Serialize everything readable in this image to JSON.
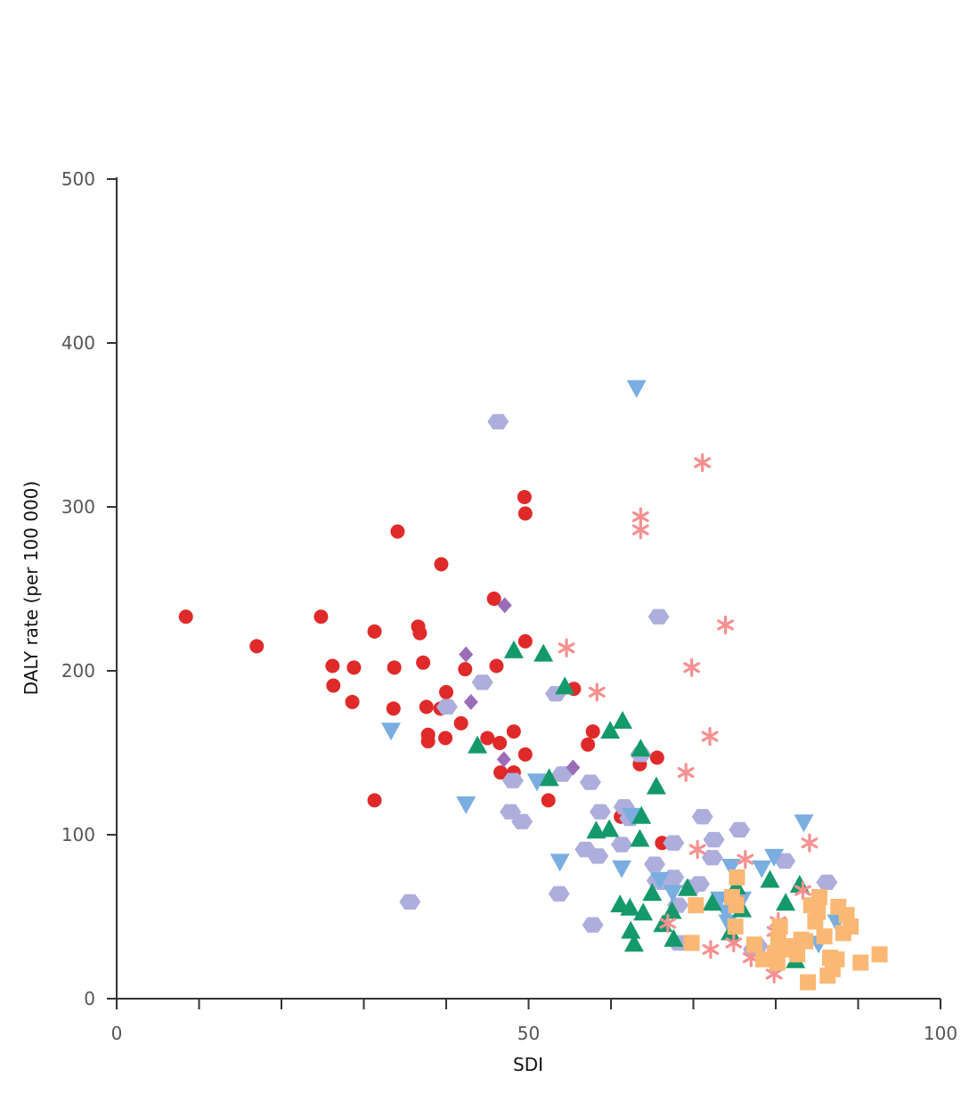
{
  "chart_data": {
    "type": "scatter",
    "xlabel": "SDI",
    "ylabel": "DALY rate (per 100 000)",
    "xlim": [
      0,
      100
    ],
    "ylim": [
      0,
      500
    ],
    "x_tick_labels": [
      "0",
      "50",
      "100"
    ],
    "y_tick_labels": [
      "0",
      "100",
      "200",
      "300",
      "400",
      "500"
    ],
    "grid": false,
    "legend": "none",
    "axis_color": "#333333",
    "series": [
      {
        "marker": "circle",
        "color": "#e02a2a",
        "points": [
          [
            8.4,
            233
          ],
          [
            17,
            215
          ],
          [
            24.8,
            233
          ],
          [
            26.2,
            203
          ],
          [
            26.3,
            191
          ],
          [
            28.8,
            202
          ],
          [
            28.6,
            181
          ],
          [
            31.3,
            224
          ],
          [
            31.3,
            121
          ],
          [
            33.6,
            177
          ],
          [
            33.7,
            202
          ],
          [
            34.1,
            285
          ],
          [
            36.6,
            227
          ],
          [
            36.8,
            223
          ],
          [
            37.2,
            205
          ],
          [
            37.6,
            178
          ],
          [
            37.8,
            161
          ],
          [
            37.8,
            157
          ],
          [
            39.4,
            265
          ],
          [
            39.3,
            177
          ],
          [
            39.9,
            159
          ],
          [
            40,
            187
          ],
          [
            41.8,
            168
          ],
          [
            42.3,
            201
          ],
          [
            45.8,
            244
          ],
          [
            46.1,
            203
          ],
          [
            46.5,
            156
          ],
          [
            45,
            159
          ],
          [
            46.6,
            138
          ],
          [
            48.2,
            163
          ],
          [
            48.2,
            138
          ],
          [
            49.5,
            306
          ],
          [
            49.6,
            296
          ],
          [
            49.6,
            218
          ],
          [
            49.6,
            149
          ],
          [
            52.4,
            121
          ],
          [
            55.5,
            189
          ],
          [
            57.2,
            155
          ],
          [
            57.8,
            163
          ],
          [
            61.2,
            111
          ],
          [
            63.5,
            143
          ],
          [
            65.6,
            147
          ],
          [
            66.2,
            95
          ],
          [
            66.5,
            71
          ]
        ]
      },
      {
        "marker": "hexagon",
        "color": "#adaedc",
        "points": [
          [
            46.3,
            352
          ],
          [
            35.6,
            59
          ],
          [
            40.1,
            178
          ],
          [
            44.4,
            193
          ],
          [
            48.1,
            133
          ],
          [
            47.8,
            114
          ],
          [
            49.2,
            108
          ],
          [
            53.3,
            186
          ],
          [
            53.7,
            64
          ],
          [
            54.1,
            137
          ],
          [
            56.9,
            91
          ],
          [
            57.5,
            132
          ],
          [
            57.8,
            45
          ],
          [
            58.4,
            87
          ],
          [
            58.7,
            114
          ],
          [
            61.3,
            94
          ],
          [
            61.6,
            117
          ],
          [
            62.3,
            110
          ],
          [
            63.6,
            149
          ],
          [
            65.3,
            82
          ],
          [
            65.6,
            72
          ],
          [
            65.8,
            233
          ],
          [
            66.2,
            71
          ],
          [
            67.6,
            95
          ],
          [
            67.6,
            74
          ],
          [
            68.1,
            57
          ],
          [
            68.2,
            34
          ],
          [
            69.8,
            68
          ],
          [
            70.7,
            70
          ],
          [
            71.1,
            111
          ],
          [
            72.3,
            86
          ],
          [
            72.5,
            97
          ],
          [
            75.6,
            103
          ],
          [
            77.3,
            30
          ],
          [
            77.8,
            32
          ],
          [
            81.1,
            84
          ],
          [
            86.2,
            71
          ]
        ]
      },
      {
        "marker": "diamond",
        "color": "#9b6db8",
        "points": [
          [
            42.4,
            210
          ],
          [
            43,
            181
          ],
          [
            47.1,
            240
          ],
          [
            47,
            146
          ],
          [
            55.4,
            141
          ]
        ]
      },
      {
        "marker": "triangle-down",
        "color": "#7aaee1",
        "points": [
          [
            33.3,
            164
          ],
          [
            42.4,
            119
          ],
          [
            51,
            133
          ],
          [
            53.8,
            84
          ],
          [
            61.3,
            80
          ],
          [
            62.5,
            112
          ],
          [
            63.1,
            373
          ],
          [
            65.9,
            73
          ],
          [
            67.5,
            65
          ],
          [
            73.2,
            61
          ],
          [
            74,
            53
          ],
          [
            74.2,
            47
          ],
          [
            74.6,
            81
          ],
          [
            75.9,
            61
          ],
          [
            78.3,
            80
          ],
          [
            79.8,
            87
          ],
          [
            83.4,
            108
          ],
          [
            85.2,
            34
          ],
          [
            87.4,
            47
          ]
        ]
      },
      {
        "marker": "triangle-up",
        "color": "#14996a",
        "points": [
          [
            43.8,
            154
          ],
          [
            48.2,
            212
          ],
          [
            51.8,
            210
          ],
          [
            52.5,
            134
          ],
          [
            54.4,
            190
          ],
          [
            58.2,
            102
          ],
          [
            59.8,
            103
          ],
          [
            59.9,
            163
          ],
          [
            61.4,
            169
          ],
          [
            61.1,
            57
          ],
          [
            62.3,
            55
          ],
          [
            62.4,
            41
          ],
          [
            62.8,
            33
          ],
          [
            63.5,
            97
          ],
          [
            63.7,
            111
          ],
          [
            63.9,
            52
          ],
          [
            63.6,
            152
          ],
          [
            65,
            64
          ],
          [
            65.5,
            129
          ],
          [
            66.3,
            45
          ],
          [
            67.4,
            53
          ],
          [
            67.6,
            36
          ],
          [
            69.3,
            67
          ],
          [
            72.3,
            58
          ],
          [
            74.5,
            40
          ],
          [
            75.2,
            68
          ],
          [
            75.9,
            54
          ],
          [
            79.3,
            72
          ],
          [
            81.2,
            58
          ],
          [
            82.4,
            23
          ],
          [
            82.9,
            69
          ]
        ]
      },
      {
        "marker": "asterisk",
        "color": "#f59090",
        "points": [
          [
            54.6,
            214
          ],
          [
            58.3,
            187
          ],
          [
            63.6,
            294
          ],
          [
            63.6,
            286
          ],
          [
            69.1,
            138
          ],
          [
            69.8,
            202
          ],
          [
            70.5,
            91
          ],
          [
            71.1,
            327
          ],
          [
            72,
            160
          ],
          [
            72.1,
            30
          ],
          [
            73.9,
            228
          ],
          [
            74.9,
            34
          ],
          [
            75.2,
            60
          ],
          [
            76.3,
            85
          ],
          [
            77,
            25
          ],
          [
            79.8,
            15
          ],
          [
            79.9,
            41
          ],
          [
            80.3,
            47
          ],
          [
            83.3,
            66
          ],
          [
            84.1,
            95
          ],
          [
            66.9,
            46
          ]
        ]
      },
      {
        "marker": "square",
        "color": "#fab874",
        "points": [
          [
            69.8,
            34
          ],
          [
            70.3,
            57
          ],
          [
            74.7,
            62
          ],
          [
            75.2,
            57
          ],
          [
            75.3,
            74
          ],
          [
            75.1,
            44
          ],
          [
            77.4,
            33
          ],
          [
            78.5,
            24
          ],
          [
            79.9,
            28
          ],
          [
            80.2,
            22
          ],
          [
            80.5,
            44
          ],
          [
            80.3,
            35
          ],
          [
            80.7,
            30
          ],
          [
            81.6,
            32
          ],
          [
            82.6,
            27
          ],
          [
            83.1,
            36
          ],
          [
            83.6,
            35
          ],
          [
            83.9,
            10
          ],
          [
            84.3,
            57
          ],
          [
            84.8,
            47
          ],
          [
            85.1,
            53
          ],
          [
            85.3,
            62
          ],
          [
            85.9,
            38
          ],
          [
            86.3,
            14
          ],
          [
            86.6,
            25
          ],
          [
            86.9,
            18
          ],
          [
            87.4,
            24
          ],
          [
            87.6,
            56
          ],
          [
            88.2,
            40
          ],
          [
            88.6,
            51
          ],
          [
            89.1,
            44
          ],
          [
            90.3,
            22
          ],
          [
            92.6,
            27
          ]
        ]
      }
    ]
  }
}
